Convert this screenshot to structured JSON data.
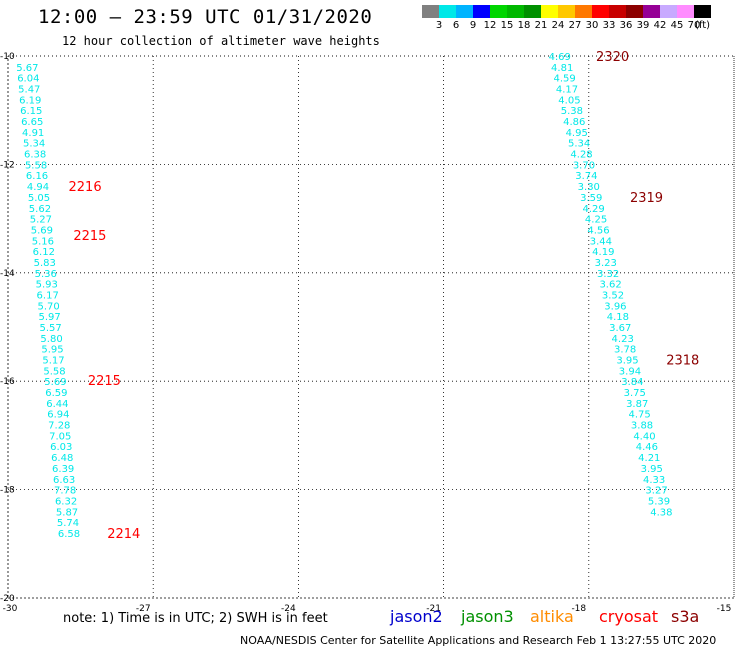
{
  "header": {
    "title": "12:00 – 23:59 UTC 01/31/2020",
    "subtitle": "12 hour collection of altimeter wave heights"
  },
  "color_scale": {
    "colors": [
      "#808080",
      "#00e8e8",
      "#00b4ff",
      "#0000ff",
      "#00d600",
      "#00b800",
      "#009000",
      "#ffff00",
      "#ffc800",
      "#ff7800",
      "#ff0000",
      "#c80000",
      "#8c0000",
      "#960096",
      "#c8aaff",
      "#ff8cff",
      "#000000"
    ],
    "labels": [
      "3",
      "6",
      "9",
      "12",
      "15",
      "18",
      "21",
      "24",
      "27",
      "30",
      "33",
      "36",
      "39",
      "42",
      "45",
      "70",
      "(ft)"
    ]
  },
  "map": {
    "lon_ticks": [
      "-30",
      "-27",
      "-24",
      "-21",
      "-18",
      "-15"
    ],
    "lat_ticks": [
      "-10",
      "-12",
      "-14",
      "-16",
      "-18",
      "-20"
    ],
    "lon_range": [
      -30,
      -15
    ],
    "lat_range": [
      -20,
      -10
    ],
    "track_color": "#00e8e8",
    "tracks": [
      {
        "id": "west",
        "pass_color": "#ff0000",
        "points": [
          {
            "lon": -29.6,
            "lat": -10.2,
            "v": "5.67"
          },
          {
            "lon": -29.58,
            "lat": -10.4,
            "v": "6.04"
          },
          {
            "lon": -29.56,
            "lat": -10.6,
            "v": "5.47"
          },
          {
            "lon": -29.54,
            "lat": -10.8,
            "v": "6.19"
          },
          {
            "lon": -29.52,
            "lat": -11.0,
            "v": "6.15"
          },
          {
            "lon": -29.5,
            "lat": -11.2,
            "v": "6.65"
          },
          {
            "lon": -29.48,
            "lat": -11.4,
            "v": "4.91"
          },
          {
            "lon": -29.46,
            "lat": -11.6,
            "v": "5.34"
          },
          {
            "lon": -29.44,
            "lat": -11.8,
            "v": "6.38"
          },
          {
            "lon": -29.42,
            "lat": -12.0,
            "v": "5.58"
          },
          {
            "lon": -29.4,
            "lat": -12.2,
            "v": "6.16"
          },
          {
            "lon": -29.38,
            "lat": -12.4,
            "v": "4.94"
          },
          {
            "lon": -29.36,
            "lat": -12.6,
            "v": "5.05"
          },
          {
            "lon": -29.34,
            "lat": -12.8,
            "v": "5.62"
          },
          {
            "lon": -29.32,
            "lat": -13.0,
            "v": "5.27"
          },
          {
            "lon": -29.3,
            "lat": -13.2,
            "v": "5.69"
          },
          {
            "lon": -29.28,
            "lat": -13.4,
            "v": "5.16"
          },
          {
            "lon": -29.26,
            "lat": -13.6,
            "v": "6.12"
          },
          {
            "lon": -29.24,
            "lat": -13.8,
            "v": "5.83"
          },
          {
            "lon": -29.22,
            "lat": -14.0,
            "v": "5.36"
          },
          {
            "lon": -29.2,
            "lat": -14.2,
            "v": "5.93"
          },
          {
            "lon": -29.18,
            "lat": -14.4,
            "v": "6.17"
          },
          {
            "lon": -29.16,
            "lat": -14.6,
            "v": "5.70"
          },
          {
            "lon": -29.14,
            "lat": -14.8,
            "v": "5.97"
          },
          {
            "lon": -29.12,
            "lat": -15.0,
            "v": "5.57"
          },
          {
            "lon": -29.1,
            "lat": -15.2,
            "v": "5.80"
          },
          {
            "lon": -29.08,
            "lat": -15.4,
            "v": "5.95"
          },
          {
            "lon": -29.06,
            "lat": -15.6,
            "v": "5.17"
          },
          {
            "lon": -29.04,
            "lat": -15.8,
            "v": "5.58"
          },
          {
            "lon": -29.02,
            "lat": -16.0,
            "v": "5.69"
          },
          {
            "lon": -29.0,
            "lat": -16.2,
            "v": "6.59"
          },
          {
            "lon": -28.98,
            "lat": -16.4,
            "v": "6.44"
          },
          {
            "lon": -28.96,
            "lat": -16.6,
            "v": "6.94"
          },
          {
            "lon": -28.94,
            "lat": -16.8,
            "v": "7.28"
          },
          {
            "lon": -28.92,
            "lat": -17.0,
            "v": "7.05"
          },
          {
            "lon": -28.9,
            "lat": -17.2,
            "v": "6.03"
          },
          {
            "lon": -28.88,
            "lat": -17.4,
            "v": "6.48"
          },
          {
            "lon": -28.86,
            "lat": -17.6,
            "v": "6.39"
          },
          {
            "lon": -28.84,
            "lat": -17.8,
            "v": "6.63"
          },
          {
            "lon": -28.82,
            "lat": -18.0,
            "v": "7.78"
          },
          {
            "lon": -28.8,
            "lat": -18.2,
            "v": "6.32"
          },
          {
            "lon": -28.78,
            "lat": -18.4,
            "v": "5.87"
          },
          {
            "lon": -28.76,
            "lat": -18.6,
            "v": "5.74"
          },
          {
            "lon": -28.74,
            "lat": -18.8,
            "v": "6.58"
          }
        ],
        "pass_labels": [
          {
            "lon": -28.75,
            "lat": -12.4,
            "text": "2216"
          },
          {
            "lon": -28.65,
            "lat": -13.3,
            "text": "2215"
          },
          {
            "lon": -28.35,
            "lat": -15.98,
            "text": "2215"
          },
          {
            "lon": -27.95,
            "lat": -18.8,
            "text": "2214"
          }
        ]
      },
      {
        "id": "east",
        "pass_color": "#8c0000",
        "points": [
          {
            "lon": -18.6,
            "lat": -10.0,
            "v": "4.69"
          },
          {
            "lon": -18.55,
            "lat": -10.2,
            "v": "4.81"
          },
          {
            "lon": -18.5,
            "lat": -10.4,
            "v": "4.59"
          },
          {
            "lon": -18.45,
            "lat": -10.6,
            "v": "4.17"
          },
          {
            "lon": -18.4,
            "lat": -10.8,
            "v": "4.05"
          },
          {
            "lon": -18.35,
            "lat": -11.0,
            "v": "5.38"
          },
          {
            "lon": -18.3,
            "lat": -11.2,
            "v": "4.86"
          },
          {
            "lon": -18.25,
            "lat": -11.4,
            "v": "4.95"
          },
          {
            "lon": -18.2,
            "lat": -11.6,
            "v": "5.34"
          },
          {
            "lon": -18.15,
            "lat": -11.8,
            "v": "4.28"
          },
          {
            "lon": -18.1,
            "lat": -12.0,
            "v": "3.70"
          },
          {
            "lon": -18.05,
            "lat": -12.2,
            "v": "3.74"
          },
          {
            "lon": -18.0,
            "lat": -12.4,
            "v": "3.30"
          },
          {
            "lon": -17.95,
            "lat": -12.6,
            "v": "3.59"
          },
          {
            "lon": -17.9,
            "lat": -12.8,
            "v": "4.29"
          },
          {
            "lon": -17.85,
            "lat": -13.0,
            "v": "4.25"
          },
          {
            "lon": -17.8,
            "lat": -13.2,
            "v": "4.56"
          },
          {
            "lon": -17.75,
            "lat": -13.4,
            "v": "3.44"
          },
          {
            "lon": -17.7,
            "lat": -13.6,
            "v": "4.19"
          },
          {
            "lon": -17.65,
            "lat": -13.8,
            "v": "3.23"
          },
          {
            "lon": -17.6,
            "lat": -14.0,
            "v": "3.32"
          },
          {
            "lon": -17.55,
            "lat": -14.2,
            "v": "3.62"
          },
          {
            "lon": -17.5,
            "lat": -14.4,
            "v": "3.52"
          },
          {
            "lon": -17.45,
            "lat": -14.6,
            "v": "3.96"
          },
          {
            "lon": -17.4,
            "lat": -14.8,
            "v": "4.18"
          },
          {
            "lon": -17.35,
            "lat": -15.0,
            "v": "3.67"
          },
          {
            "lon": -17.3,
            "lat": -15.2,
            "v": "4.23"
          },
          {
            "lon": -17.25,
            "lat": -15.4,
            "v": "3.78"
          },
          {
            "lon": -17.2,
            "lat": -15.6,
            "v": "3.95"
          },
          {
            "lon": -17.15,
            "lat": -15.8,
            "v": "3.94"
          },
          {
            "lon": -17.1,
            "lat": -16.0,
            "v": "3.84"
          },
          {
            "lon": -17.05,
            "lat": -16.2,
            "v": "3.75"
          },
          {
            "lon": -17.0,
            "lat": -16.4,
            "v": "3.87"
          },
          {
            "lon": -16.95,
            "lat": -16.6,
            "v": "4.75"
          },
          {
            "lon": -16.9,
            "lat": -16.8,
            "v": "3.88"
          },
          {
            "lon": -16.85,
            "lat": -17.0,
            "v": "4.40"
          },
          {
            "lon": -16.8,
            "lat": -17.2,
            "v": "4.46"
          },
          {
            "lon": -16.75,
            "lat": -17.4,
            "v": "4.21"
          },
          {
            "lon": -16.7,
            "lat": -17.6,
            "v": "3.95"
          },
          {
            "lon": -16.65,
            "lat": -17.8,
            "v": "4.33"
          },
          {
            "lon": -16.6,
            "lat": -18.0,
            "v": "3.27"
          },
          {
            "lon": -16.55,
            "lat": -18.2,
            "v": "5.39"
          },
          {
            "lon": -16.5,
            "lat": -18.4,
            "v": "4.38"
          }
        ],
        "pass_labels": [
          {
            "lon": -17.85,
            "lat": -10.0,
            "text": "2320"
          },
          {
            "lon": -17.15,
            "lat": -12.6,
            "text": "2319"
          },
          {
            "lon": -16.4,
            "lat": -15.6,
            "text": "2318"
          }
        ]
      }
    ]
  },
  "note": "note: 1) Time is in UTC; 2) SWH is in feet",
  "missions": [
    {
      "name": "jason2",
      "color": "#0000cc"
    },
    {
      "name": "jason3",
      "color": "#009000"
    },
    {
      "name": "altika",
      "color": "#ff8c00"
    },
    {
      "name": "cryosat",
      "color": "#ff0000"
    },
    {
      "name": "s3a",
      "color": "#8c0000"
    }
  ],
  "footer": "NOAA/NESDIS Center for Satellite Applications and Research    Feb  1 13:27:55 UTC 2020"
}
